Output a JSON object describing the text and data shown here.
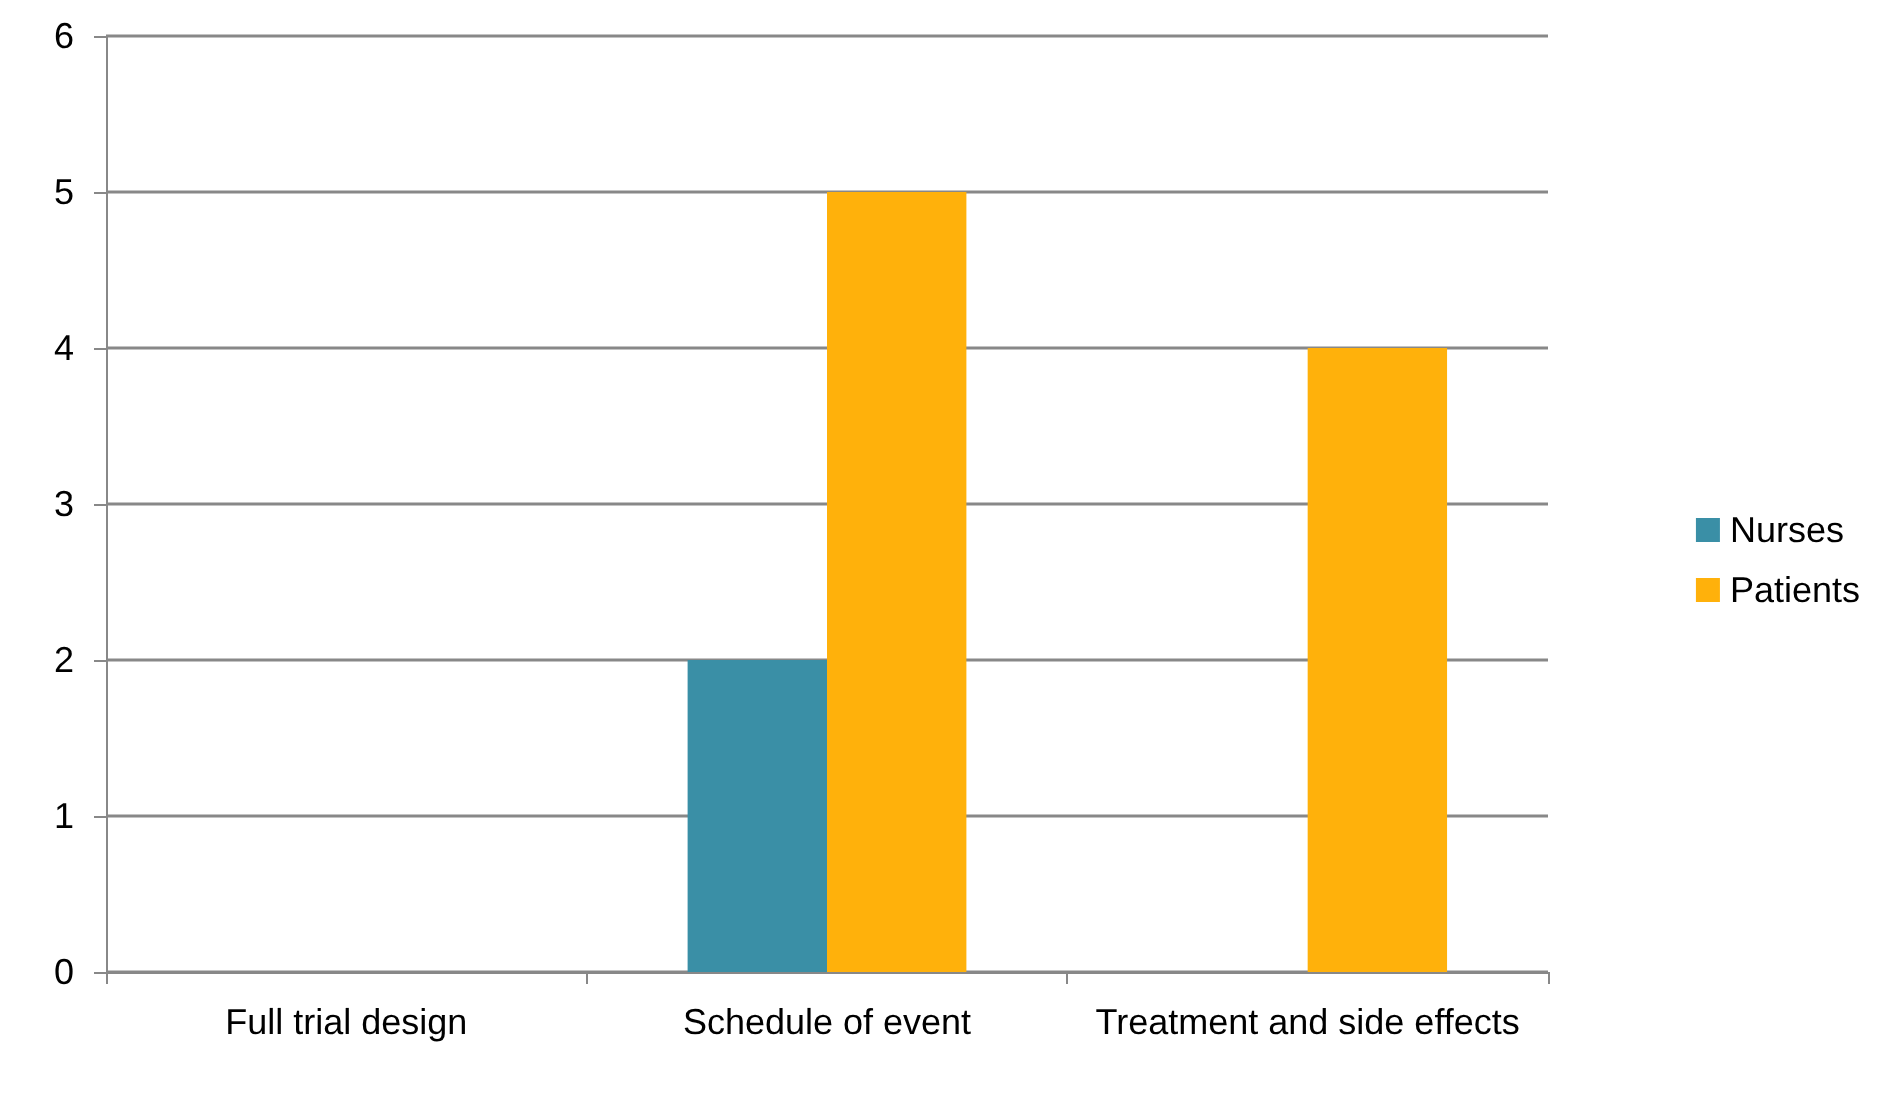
{
  "chart_data": {
    "type": "bar",
    "categories": [
      "Full trial design",
      "Schedule of event",
      "Treatment and side effects"
    ],
    "series": [
      {
        "name": "Nurses",
        "color": "#3a8fa6",
        "values": [
          0,
          2,
          0
        ]
      },
      {
        "name": "Patients",
        "color": "#ffb10b",
        "values": [
          0,
          5,
          4
        ]
      }
    ],
    "ylim": [
      0,
      6
    ],
    "yticks": [
      0,
      1,
      2,
      3,
      4,
      5,
      6
    ],
    "grid": "y",
    "legend": "right"
  }
}
